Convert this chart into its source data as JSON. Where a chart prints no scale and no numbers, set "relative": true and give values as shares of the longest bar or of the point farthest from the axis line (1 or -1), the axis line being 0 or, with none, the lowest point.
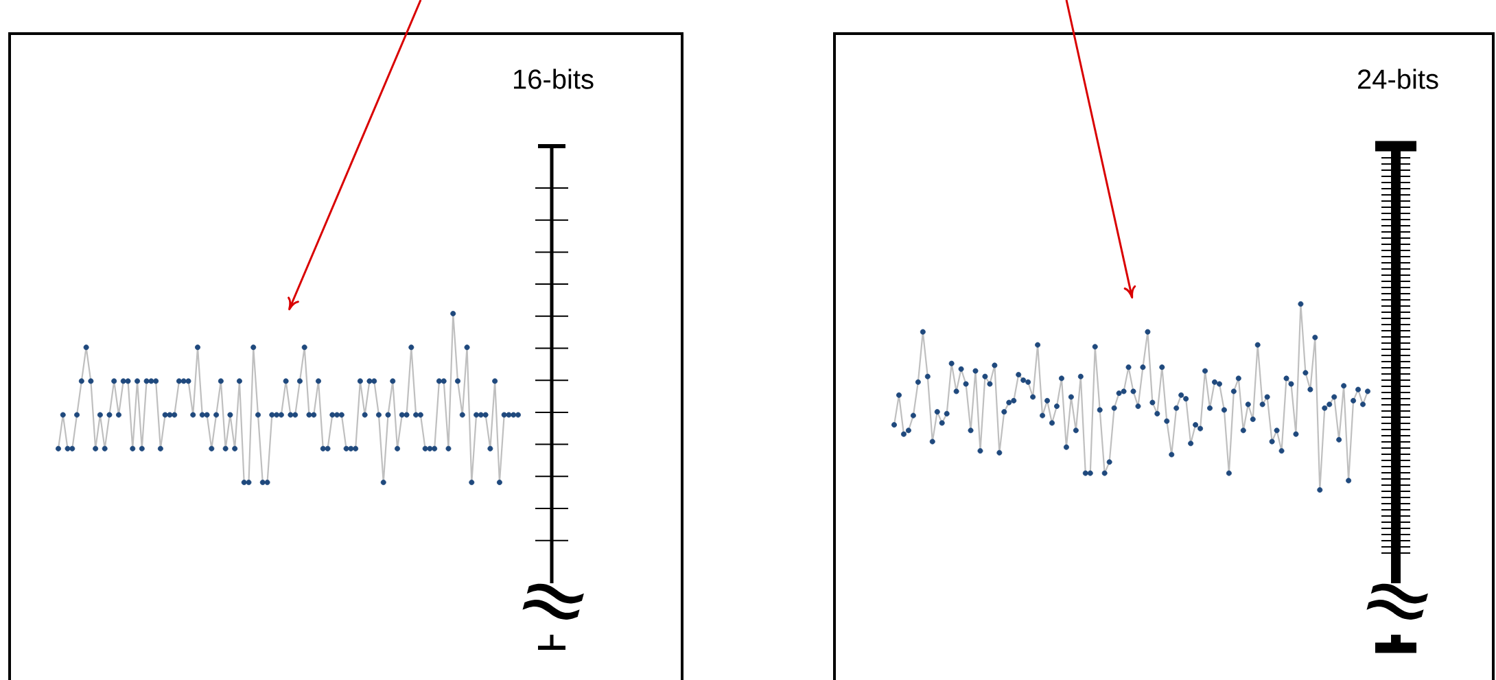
{
  "chart_data": [
    {
      "type": "line",
      "title": "16-bits",
      "relative": true,
      "marker": "circle",
      "annotations": [
        "≈"
      ],
      "categories": [
        null,
        null,
        null,
        null,
        null,
        null,
        null,
        null,
        null,
        null,
        null,
        null,
        null,
        null,
        null,
        null,
        null,
        null,
        null,
        null,
        null,
        null,
        null,
        null,
        null,
        null,
        null,
        null,
        null,
        null,
        null,
        null,
        null,
        null,
        null,
        null,
        null,
        null,
        null,
        null,
        null,
        null,
        null,
        null,
        null,
        null,
        null,
        null,
        null,
        null,
        null,
        null,
        null,
        null,
        null,
        null,
        null,
        null,
        null,
        null,
        null,
        null,
        null,
        null,
        null,
        null,
        null,
        null,
        null,
        null,
        null,
        null,
        null,
        null,
        null,
        null,
        null,
        null,
        null,
        null,
        null,
        null,
        null,
        null,
        null,
        null,
        null,
        null,
        null,
        null,
        null,
        null,
        null,
        null,
        null,
        null,
        null,
        null,
        null,
        null
      ],
      "series": [
        {
          "color": "#bfbfbf",
          "colors": [
            "#1f497d",
            "#1f497d",
            "#1f497d",
            "#1f497d",
            "#1f497d",
            "#1f497d",
            "#1f497d",
            "#1f497d",
            "#1f497d",
            "#1f497d",
            "#1f497d",
            "#1f497d",
            "#1f497d",
            "#1f497d",
            "#1f497d",
            "#1f497d",
            "#1f497d",
            "#1f497d",
            "#1f497d",
            "#1f497d",
            "#1f497d",
            "#1f497d",
            "#1f497d",
            "#1f497d",
            "#1f497d",
            "#1f497d",
            "#1f497d",
            "#1f497d",
            "#1f497d",
            "#1f497d",
            "#1f497d",
            "#1f497d",
            "#1f497d",
            "#1f497d",
            "#1f497d",
            "#1f497d",
            "#1f497d",
            "#1f497d",
            "#1f497d",
            "#1f497d",
            "#1f497d",
            "#1f497d",
            "#1f497d",
            "#1f497d",
            "#1f497d",
            "#1f497d",
            "#1f497d",
            "#1f497d",
            "#1f497d",
            "#1f497d",
            "#1f497d",
            "#1f497d",
            "#1f497d",
            "#1f497d",
            "#1f497d",
            "#1f497d",
            "#1f497d",
            "#1f497d",
            "#1f497d",
            "#1f497d",
            "#1f497d",
            "#1f497d",
            "#1f497d",
            "#1f497d",
            "#1f497d",
            "#1f497d",
            "#1f497d",
            "#1f497d",
            "#1f497d",
            "#1f497d",
            "#1f497d",
            "#1f497d",
            "#1f497d",
            "#1f497d",
            "#1f497d",
            "#1f497d",
            "#1f497d",
            "#1f497d",
            "#1f497d",
            "#1f497d",
            "#1f497d",
            "#1f497d",
            "#1f497d",
            "#1f497d",
            "#1f497d",
            "#1f497d",
            "#1f497d",
            "#1f497d",
            "#1f497d",
            "#1f497d",
            "#1f497d",
            "#1f497d",
            "#1f497d",
            "#1f497d",
            "#1f497d",
            "#1f497d",
            "#1f497d",
            "#1f497d",
            "#1f497d",
            "#1f497d"
          ],
          "values": [
            0.2,
            0.4,
            0.2,
            0.2,
            0.4,
            0.6,
            0.8,
            0.6,
            0.2,
            0.4,
            0.2,
            0.4,
            0.6,
            0.4,
            0.6,
            0.6,
            0.2,
            0.6,
            0.2,
            0.6,
            0.6,
            0.6,
            0.2,
            0.4,
            0.4,
            0.4,
            0.6,
            0.6,
            0.6,
            0.4,
            0.8,
            0.4,
            0.4,
            0.2,
            0.4,
            0.6,
            0.2,
            0.4,
            0.2,
            0.6,
            0,
            0,
            0.8,
            0.4,
            0,
            0,
            0.4,
            0.4,
            0.4,
            0.6,
            0.4,
            0.4,
            0.6,
            0.8,
            0.4,
            0.4,
            0.6,
            0.2,
            0.2,
            0.4,
            0.4,
            0.4,
            0.2,
            0.2,
            0.2,
            0.6,
            0.4,
            0.6,
            0.6,
            0.4,
            0,
            0.4,
            0.6,
            0.2,
            0.4,
            0.4,
            0.8,
            0.4,
            0.4,
            0.2,
            0.2,
            0.2,
            0.6,
            0.6,
            0.2,
            1,
            0.6,
            0.4,
            0.8,
            0,
            0.4,
            0.4,
            0.4,
            0.2,
            0.6,
            0,
            0.4,
            0.4,
            0.4,
            0.4
          ]
        }
      ]
    },
    {
      "type": "line",
      "title": "24-bits",
      "relative": true,
      "marker": "circle",
      "annotations": [
        "≈"
      ],
      "categories": [
        null,
        null,
        null,
        null,
        null,
        null,
        null,
        null,
        null,
        null,
        null,
        null,
        null,
        null,
        null,
        null,
        null,
        null,
        null,
        null,
        null,
        null,
        null,
        null,
        null,
        null,
        null,
        null,
        null,
        null,
        null,
        null,
        null,
        null,
        null,
        null,
        null,
        null,
        null,
        null,
        null,
        null,
        null,
        null,
        null,
        null,
        null,
        null,
        null,
        null,
        null,
        null,
        null,
        null,
        null,
        null,
        null,
        null,
        null,
        null,
        null,
        null,
        null,
        null,
        null,
        null,
        null,
        null,
        null,
        null,
        null,
        null,
        null,
        null,
        null,
        null,
        null,
        null,
        null,
        null,
        null,
        null,
        null,
        null,
        null,
        null,
        null,
        null,
        null,
        null,
        null,
        null,
        null,
        null,
        null,
        null,
        null,
        null,
        null,
        null
      ],
      "series": [
        {
          "color": "#bfbfbf",
          "colors": [
            "#1f497d",
            "#1f497d",
            "#1f497d",
            "#1f497d",
            "#1f497d",
            "#1f497d",
            "#1f497d",
            "#1f497d",
            "#1f497d",
            "#1f497d",
            "#1f497d",
            "#1f497d",
            "#1f497d",
            "#1f497d",
            "#1f497d",
            "#1f497d",
            "#1f497d",
            "#1f497d",
            "#1f497d",
            "#1f497d",
            "#1f497d",
            "#1f497d",
            "#1f497d",
            "#1f497d",
            "#1f497d",
            "#1f497d",
            "#1f497d",
            "#1f497d",
            "#1f497d",
            "#1f497d",
            "#1f497d",
            "#1f497d",
            "#1f497d",
            "#1f497d",
            "#1f497d",
            "#1f497d",
            "#1f497d",
            "#1f497d",
            "#1f497d",
            "#1f497d",
            "#1f497d",
            "#1f497d",
            "#1f497d",
            "#1f497d",
            "#1f497d",
            "#1f497d",
            "#1f497d",
            "#1f497d",
            "#1f497d",
            "#1f497d",
            "#1f497d",
            "#1f497d",
            "#1f497d",
            "#1f497d",
            "#1f497d",
            "#1f497d",
            "#1f497d",
            "#1f497d",
            "#1f497d",
            "#1f497d",
            "#1f497d",
            "#1f497d",
            "#1f497d",
            "#1f497d",
            "#1f497d",
            "#1f497d",
            "#1f497d",
            "#1f497d",
            "#1f497d",
            "#1f497d",
            "#1f497d",
            "#1f497d",
            "#1f497d",
            "#1f497d",
            "#1f497d",
            "#1f497d",
            "#1f497d",
            "#1f497d",
            "#1f497d",
            "#1f497d",
            "#1f497d",
            "#1f497d",
            "#1f497d",
            "#1f497d",
            "#1f497d",
            "#1f497d",
            "#1f497d",
            "#1f497d",
            "#1f497d",
            "#1f497d",
            "#1f497d",
            "#1f497d",
            "#1f497d",
            "#1f497d",
            "#1f497d",
            "#1f497d",
            "#1f497d",
            "#1f497d",
            "#1f497d",
            "#1f497d"
          ],
          "values": [
            0.35,
            0.51,
            0.3,
            0.32,
            0.4,
            0.58,
            0.85,
            0.61,
            0.26,
            0.42,
            0.36,
            0.41,
            0.68,
            0.53,
            0.65,
            0.57,
            0.32,
            0.64,
            0.21,
            0.61,
            0.57,
            0.67,
            0.2,
            0.42,
            0.47,
            0.48,
            0.62,
            0.59,
            0.58,
            0.5,
            0.78,
            0.4,
            0.48,
            0.36,
            0.45,
            0.6,
            0.23,
            0.5,
            0.32,
            0.61,
            0.09,
            0.09,
            0.77,
            0.43,
            0.09,
            0.15,
            0.44,
            0.52,
            0.53,
            0.66,
            0.53,
            0.45,
            0.66,
            0.85,
            0.47,
            0.41,
            0.66,
            0.37,
            0.19,
            0.44,
            0.51,
            0.49,
            0.25,
            0.35,
            0.33,
            0.64,
            0.44,
            0.58,
            0.57,
            0.43,
            0.09,
            0.53,
            0.6,
            0.32,
            0.46,
            0.38,
            0.78,
            0.46,
            0.5,
            0.26,
            0.32,
            0.21,
            0.6,
            0.57,
            0.3,
            1,
            0.63,
            0.54,
            0.82,
            0,
            0.44,
            0.46,
            0.5,
            0.27,
            0.56,
            0.05,
            0.48,
            0.54,
            0.46,
            0.53
          ]
        }
      ]
    }
  ]
}
